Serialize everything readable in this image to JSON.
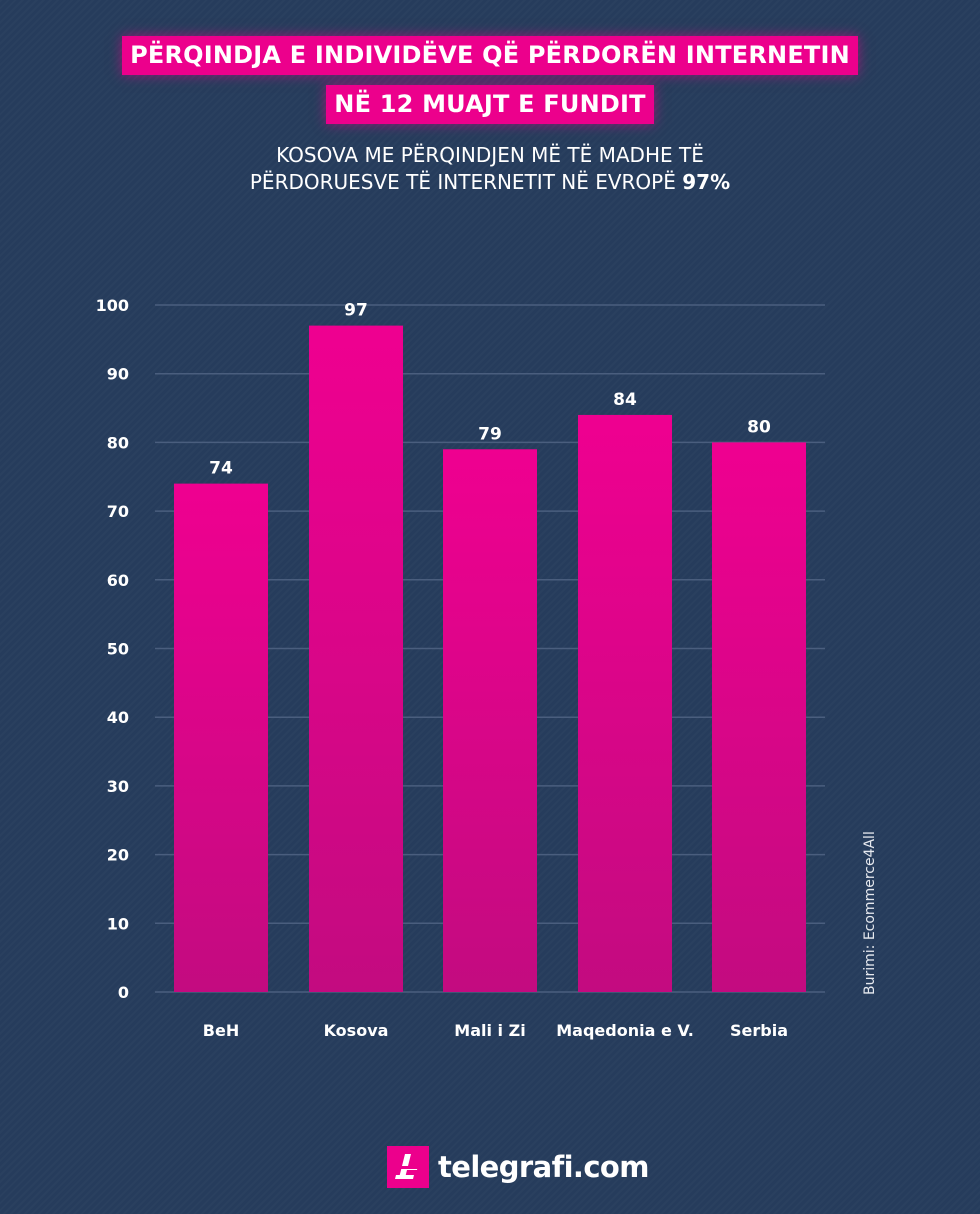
{
  "title": {
    "line1": "PËRQINDJA E INDIVIDËVE QË PËRDORËN INTERNETIN",
    "line2": "NË 12 MUAJT E FUNDIT"
  },
  "subtitle": {
    "line1": "KOSOVA ME PËRQINDJEN MË TË MADHE TË",
    "line2_prefix": "PËRDORUESVE TË INTERNETIT NË EVROPË",
    "line2_highlight": "97%"
  },
  "source": "Burimi: Ecommerce4All",
  "logo": {
    "text": "telegrafi.com"
  },
  "colors": {
    "background": "#263c5c",
    "bar_top": "#ef0090",
    "bar_bottom": "#c30b80",
    "gridline": "#4a5e7e",
    "accent": "#ec008c"
  },
  "chart_data": {
    "type": "bar",
    "title": "PËRQINDJA E INDIVIDËVE QË PËRDORËN INTERNETIN NË 12 MUAJT E FUNDIT",
    "categories": [
      "BeH",
      "Kosova",
      "Mali i Zi",
      "Maqedonia e V.",
      "Serbia"
    ],
    "values": [
      74,
      97,
      79,
      84,
      80
    ],
    "data_labels": [
      "74",
      "97",
      "79",
      "84",
      "80"
    ],
    "ylim": [
      0,
      100
    ],
    "yticks": [
      0,
      10,
      20,
      30,
      40,
      50,
      60,
      70,
      80,
      90,
      100
    ],
    "xlabel": "",
    "ylabel": "",
    "grid": true,
    "legend": "none"
  }
}
